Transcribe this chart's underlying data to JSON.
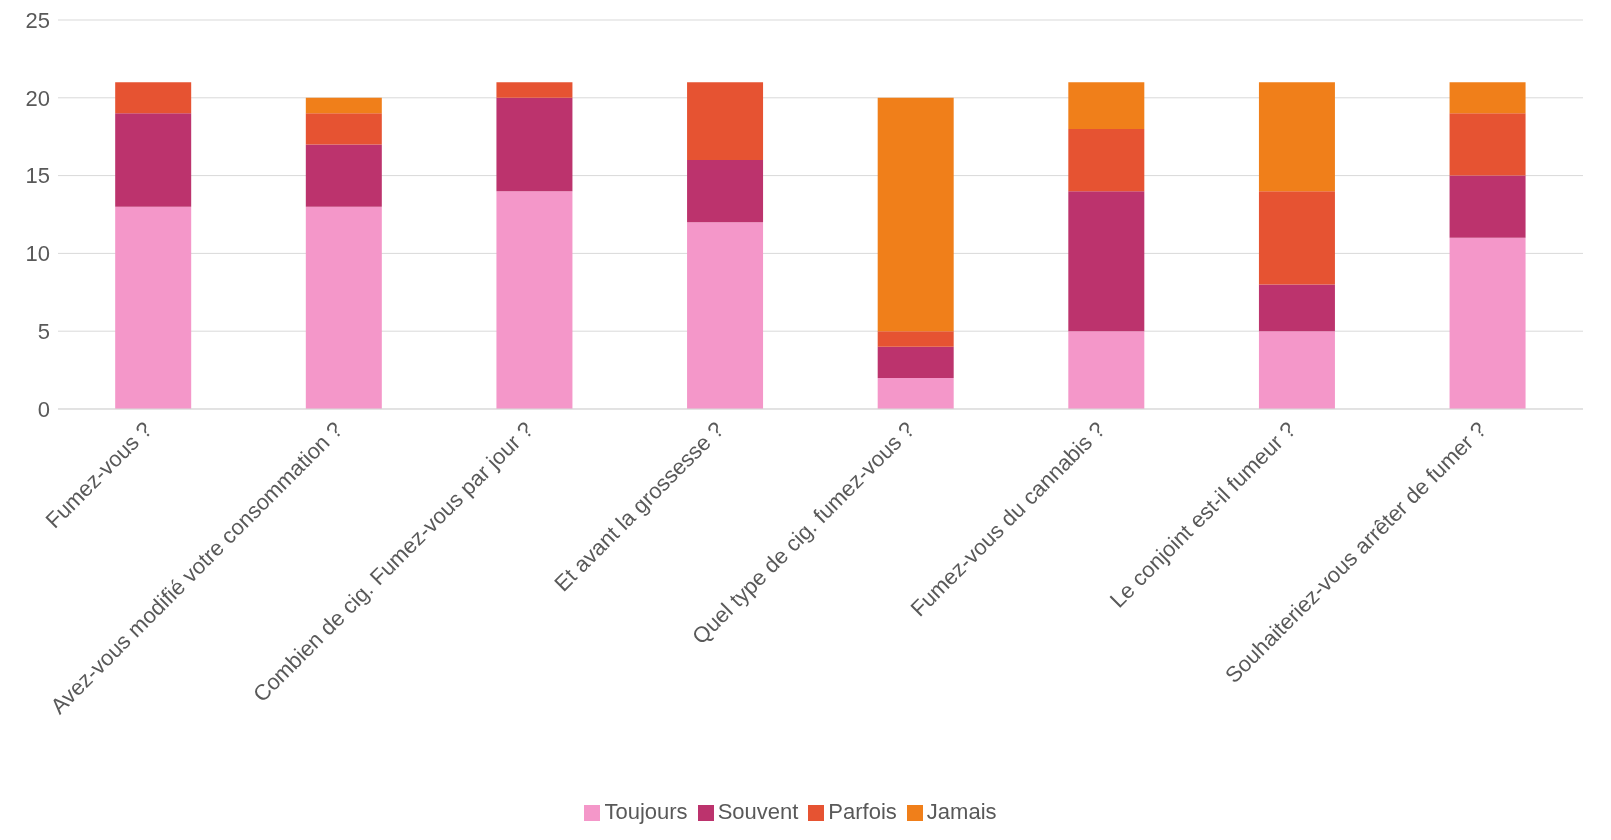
{
  "chart_data": {
    "type": "bar",
    "stacked": true,
    "categories": [
      "Fumez-vous ?",
      "Avez-vous modifié votre consommation ?",
      "Combien de cig. Fumez-vous par jour ?",
      "Et avant la grossesse ?",
      "Quel type de cig. fumez-vous ?",
      "Fumez-vous du cannabis ?",
      "Le conjoint est-il fumeur ?",
      "Souhaiteriez-vous arrêter de fumer ?"
    ],
    "series": [
      {
        "name": "Toujours",
        "color": "#f497c9",
        "values": [
          13,
          13,
          14,
          12,
          2,
          5,
          5,
          11
        ]
      },
      {
        "name": "Souvent",
        "color": "#bc336d",
        "values": [
          6,
          4,
          6,
          4,
          2,
          9,
          3,
          4
        ]
      },
      {
        "name": "Parfois",
        "color": "#e65332",
        "values": [
          2,
          2,
          1,
          5,
          1,
          4,
          6,
          4
        ]
      },
      {
        "name": "Jamais",
        "color": "#f07f1a",
        "values": [
          0,
          1,
          0,
          0,
          15,
          3,
          7,
          2
        ]
      }
    ],
    "ylim": [
      0,
      25
    ],
    "yticks": [
      0,
      5,
      10,
      15,
      20,
      25
    ],
    "grid": "y",
    "legend": "bottom"
  }
}
